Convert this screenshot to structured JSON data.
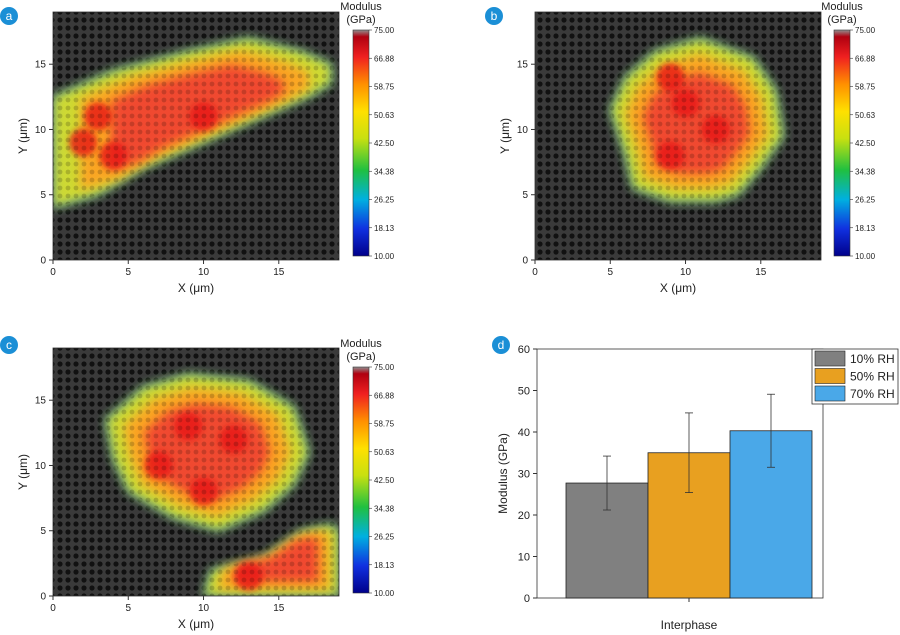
{
  "colors": {
    "panel_badge": "#1b8fd6",
    "map_background": "#3c3c3c",
    "bar_10": "#808080",
    "bar_50": "#e8a020",
    "bar_70": "#4aa8e8"
  },
  "colorbar": {
    "title_line1": "Modulus",
    "title_line2": "(GPa)",
    "ticks": [
      "75.00",
      "66.88",
      "58.75",
      "50.63",
      "42.50",
      "34.38",
      "26.25",
      "18.13",
      "10.00"
    ]
  },
  "chart_data": [
    {
      "panel": "a",
      "type": "heatmap",
      "xlabel": "X (μm)",
      "ylabel": "Y (μm)",
      "xticks": [
        "0",
        "5",
        "10",
        "15"
      ],
      "yticks": [
        "0",
        "5",
        "10",
        "15"
      ],
      "xlim": [
        0,
        19
      ],
      "ylim": [
        0,
        19
      ],
      "zlim": [
        10,
        75
      ],
      "colorbar_label": "Modulus (GPa)",
      "region": [
        [
          0,
          4
        ],
        [
          3,
          5
        ],
        [
          6,
          7
        ],
        [
          9,
          8.5
        ],
        [
          12,
          10
        ],
        [
          15,
          11.5
        ],
        [
          17,
          12.5
        ],
        [
          18.5,
          13.5
        ],
        [
          18.5,
          15
        ],
        [
          16.5,
          16
        ],
        [
          13,
          17
        ],
        [
          9,
          16
        ],
        [
          4,
          14.5
        ],
        [
          0,
          12.5
        ]
      ],
      "high_spots": [
        [
          2,
          9
        ],
        [
          4,
          8
        ],
        [
          3,
          11
        ],
        [
          10,
          11
        ]
      ]
    },
    {
      "panel": "b",
      "type": "heatmap",
      "xlabel": "X (μm)",
      "ylabel": "Y (μm)",
      "xticks": [
        "0",
        "5",
        "10",
        "15"
      ],
      "yticks": [
        "0",
        "5",
        "10",
        "15"
      ],
      "xlim": [
        0,
        19
      ],
      "ylim": [
        0,
        19
      ],
      "zlim": [
        10,
        75
      ],
      "colorbar_label": "Modulus (GPa)",
      "region": [
        [
          6.5,
          5.5
        ],
        [
          9,
          4.5
        ],
        [
          12,
          4.5
        ],
        [
          13.5,
          5
        ],
        [
          15,
          7
        ],
        [
          16.5,
          9.5
        ],
        [
          16,
          13
        ],
        [
          14.5,
          15.5
        ],
        [
          11,
          17
        ],
        [
          8,
          16
        ],
        [
          6,
          14
        ],
        [
          5,
          11.5
        ],
        [
          6,
          8
        ]
      ],
      "high_spots": [
        [
          9,
          8
        ],
        [
          12,
          10
        ],
        [
          10,
          12
        ],
        [
          9,
          14
        ]
      ]
    },
    {
      "panel": "c",
      "type": "heatmap",
      "xlabel": "X (μm)",
      "ylabel": "Y (μm)",
      "xticks": [
        "0",
        "5",
        "10",
        "15"
      ],
      "yticks": [
        "0",
        "5",
        "10",
        "15"
      ],
      "xlim": [
        0,
        19
      ],
      "ylim": [
        0,
        19
      ],
      "zlim": [
        10,
        75
      ],
      "colorbar_label": "Modulus (GPa)",
      "region": [
        [
          5,
          8
        ],
        [
          8,
          6
        ],
        [
          11,
          5
        ],
        [
          14,
          6.5
        ],
        [
          16,
          8.5
        ],
        [
          17,
          11
        ],
        [
          16,
          14.5
        ],
        [
          13,
          16.5
        ],
        [
          9,
          17
        ],
        [
          6,
          16
        ],
        [
          3.5,
          13.5
        ],
        [
          4,
          10.5
        ]
      ],
      "region2": [
        [
          10,
          0
        ],
        [
          10.5,
          2
        ],
        [
          14,
          3
        ],
        [
          16.5,
          5
        ],
        [
          18.5,
          5.5
        ],
        [
          19,
          5
        ],
        [
          19,
          0
        ]
      ],
      "high_spots": [
        [
          7,
          10
        ],
        [
          9,
          13
        ],
        [
          12,
          12
        ],
        [
          10,
          8
        ],
        [
          13,
          1.5
        ]
      ]
    },
    {
      "panel": "d",
      "type": "bar",
      "categories": [
        "Interphase"
      ],
      "series": [
        {
          "name": "10% RH",
          "values": [
            27.7
          ],
          "error": [
            6.5
          ]
        },
        {
          "name": "50% RH",
          "values": [
            35.0
          ],
          "error": [
            9.6
          ]
        },
        {
          "name": "70% RH",
          "values": [
            40.3
          ],
          "error": [
            8.8
          ]
        }
      ],
      "xlabel": "Interphase",
      "ylabel": "Modulus (GPa)",
      "ylim": [
        0,
        60
      ],
      "yticks": [
        "0",
        "10",
        "20",
        "30",
        "40",
        "50",
        "60"
      ],
      "legend_position": "top-right"
    }
  ]
}
